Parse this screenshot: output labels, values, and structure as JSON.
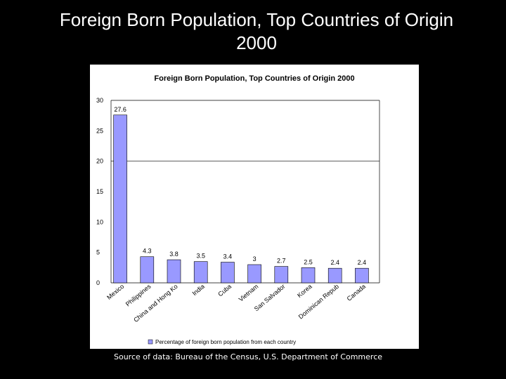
{
  "slide": {
    "title": "Foreign Born Population, Top Countries of Origin 2000",
    "source": "Source of data:  Bureau of the Census, U.S. Department of Commerce"
  },
  "colors": {
    "background": "#000000",
    "bar_fill": "#9999ff",
    "bar_stroke": "#000000"
  },
  "chart_data": {
    "type": "bar",
    "title": "Foreign Born Population, Top Countries of Origin 2000",
    "categories": [
      "Mexico",
      "Philippines",
      "China and Hong Ko",
      "India",
      "Cuba",
      "Vietnam",
      "San Salvador",
      "Korea",
      "Dominican Repub",
      "Canada"
    ],
    "series": [
      {
        "name": "Percentage of foreign born population from each country",
        "values": [
          27.6,
          4.3,
          3.8,
          3.5,
          3.4,
          3,
          2.7,
          2.5,
          2.4,
          2.4
        ]
      }
    ],
    "data_labels": [
      "27.6",
      "4.3",
      "3.8",
      "3.5",
      "3.4",
      "3",
      "2.7",
      "2.5",
      "2.4",
      "2.4"
    ],
    "ylim": [
      0,
      30
    ],
    "yticks": [
      0,
      5,
      10,
      15,
      20,
      25,
      30
    ],
    "grid": "horizontal at 20 and 30",
    "legend_position": "bottom",
    "xlabel": "",
    "ylabel": ""
  }
}
